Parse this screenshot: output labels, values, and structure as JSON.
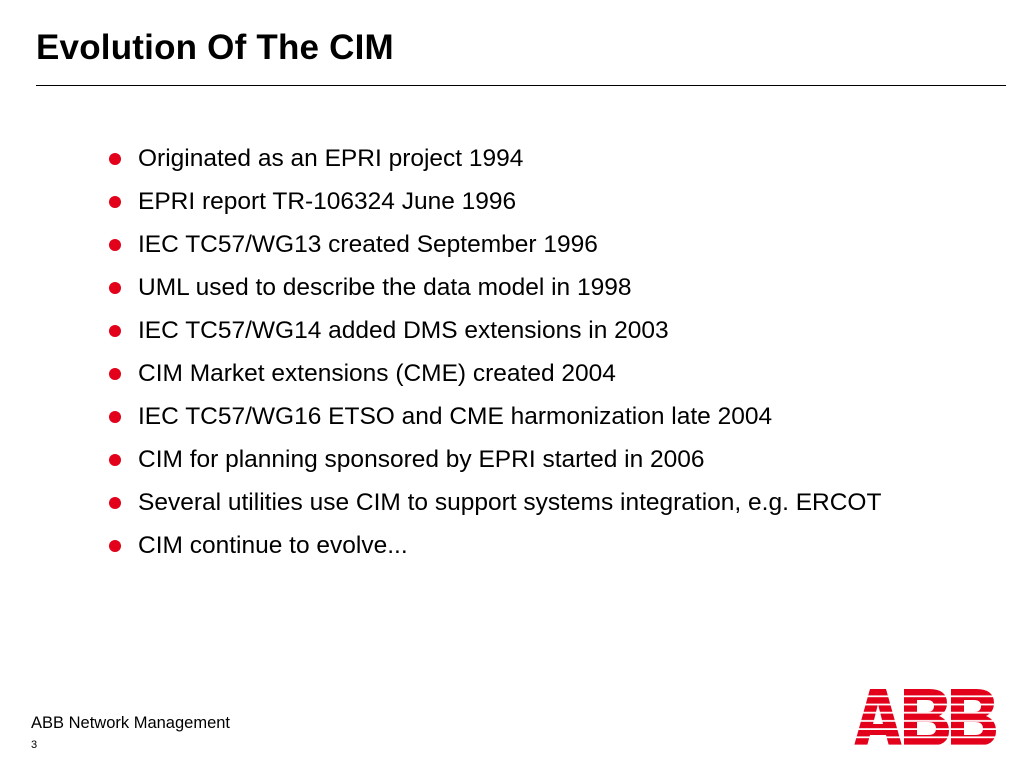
{
  "slide": {
    "title": "Evolution Of The CIM",
    "bullets": [
      "Originated as an EPRI project 1994",
      "EPRI report TR-106324 June 1996",
      "IEC TC57/WG13 created September 1996",
      "UML used to describe the data model in 1998",
      "IEC TC57/WG14 added DMS extensions in 2003",
      "CIM Market extensions (CME) created 2004",
      "IEC TC57/WG16 ETSO and CME harmonization late 2004",
      "CIM for planning sponsored by EPRI started in 2006",
      "Several utilities use CIM to support systems integration, e.g. ERCOT",
      "CIM continue to evolve..."
    ]
  },
  "footer": {
    "text": "ABB Network Management",
    "page_number": "3"
  },
  "logo": {
    "text": "ABB",
    "icon": "abb-logo-icon"
  },
  "colors": {
    "bullet": "#e2001a",
    "logo": "#e2001a",
    "text": "#000000",
    "rule": "#000000"
  }
}
